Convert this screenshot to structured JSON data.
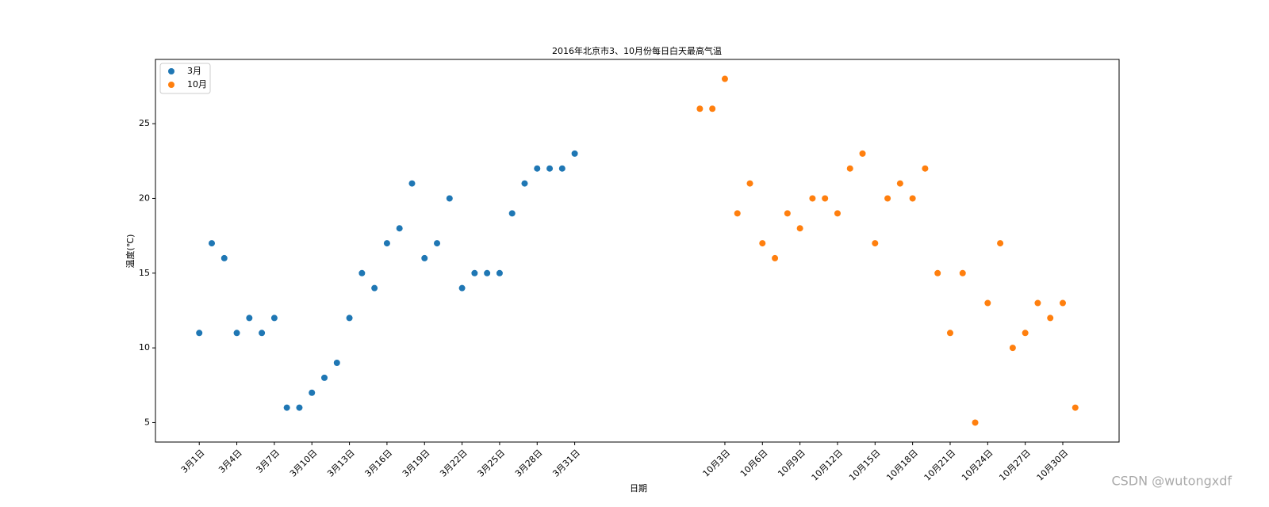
{
  "chart_data": {
    "type": "scatter",
    "title": "2016年北京市3、10月份每日白天最高气温",
    "xlabel": "日期",
    "ylabel": "温度(℃)",
    "categories": [
      "3月1日",
      null,
      null,
      "3月4日",
      null,
      null,
      "3月7日",
      null,
      null,
      "3月10日",
      null,
      null,
      "3月13日",
      null,
      null,
      "3月16日",
      null,
      null,
      "3月19日",
      null,
      null,
      "3月22日",
      null,
      null,
      "3月25日",
      null,
      null,
      "3月28日",
      null,
      null,
      "3月31日",
      null,
      null,
      null,
      null,
      null,
      null,
      null,
      null,
      null,
      null,
      null,
      "10月3日",
      null,
      null,
      "10月6日",
      null,
      null,
      "10月9日",
      null,
      null,
      "10月12日",
      null,
      null,
      "10月15日",
      null,
      null,
      "10月18日",
      null,
      null,
      "10月21日",
      null,
      null,
      "10月24日",
      null,
      null,
      "10月27日",
      null,
      null,
      "10月30日",
      null
    ],
    "series": [
      {
        "name": "3月",
        "color": "#1f77b4",
        "values": [
          11,
          17,
          16,
          11,
          12,
          11,
          12,
          6,
          6,
          7,
          8,
          9,
          12,
          15,
          14,
          17,
          18,
          21,
          16,
          17,
          20,
          14,
          15,
          15,
          15,
          19,
          21,
          22,
          22,
          22,
          23,
          null,
          null,
          null,
          null,
          null,
          null,
          null,
          null,
          null,
          null,
          null,
          null,
          null,
          null,
          null,
          null,
          null,
          null,
          null,
          null,
          null,
          null,
          null,
          null,
          null,
          null,
          null,
          null,
          null,
          null,
          null,
          null,
          null,
          null,
          null,
          null,
          null,
          null,
          null,
          null
        ]
      },
      {
        "name": "10月",
        "color": "#ff7f0e",
        "values": [
          null,
          null,
          null,
          null,
          null,
          null,
          null,
          null,
          null,
          null,
          null,
          null,
          null,
          null,
          null,
          null,
          null,
          null,
          null,
          null,
          null,
          null,
          null,
          null,
          null,
          null,
          null,
          null,
          null,
          null,
          null,
          null,
          null,
          null,
          null,
          null,
          null,
          null,
          null,
          null,
          26,
          26,
          28,
          19,
          21,
          17,
          16,
          19,
          18,
          20,
          20,
          19,
          22,
          23,
          17,
          20,
          21,
          20,
          22,
          15,
          11,
          15,
          5,
          13,
          17,
          10,
          11,
          13,
          12,
          13,
          6
        ]
      }
    ],
    "xlim": [
      -3.5,
      73.5
    ],
    "ylim": [
      3.7,
      29.3
    ],
    "yticks": [
      5,
      10,
      15,
      20,
      25
    ],
    "legend": "upper left",
    "watermark": "CSDN @wutongxdf"
  }
}
